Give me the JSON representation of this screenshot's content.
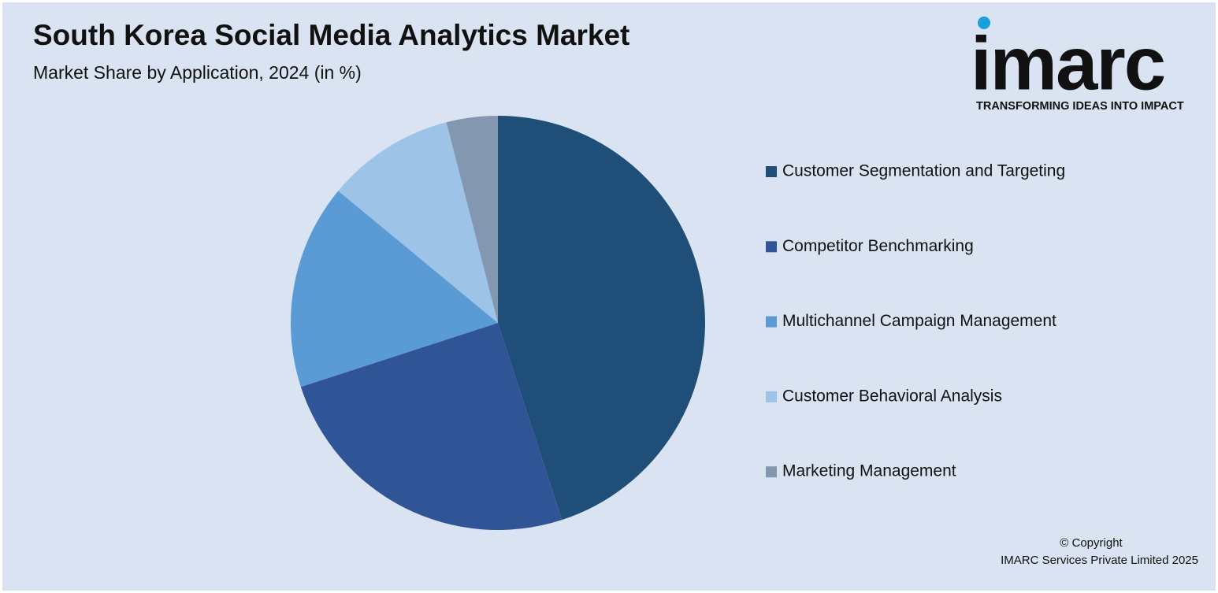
{
  "chart_data": {
    "type": "pie",
    "title": "South Korea Social Media Analytics Market",
    "subtitle": "Market Share by Application, 2024 (in %)",
    "categories": [
      "Customer Segmentation and Targeting",
      "Competitor Benchmarking",
      "Multichannel Campaign Management",
      "Customer Behavioral Analysis",
      "Marketing Management"
    ],
    "values": [
      45,
      25,
      16,
      10,
      4
    ],
    "colors": [
      "#1f4e79",
      "#2f5597",
      "#5b9bd5",
      "#9dc3e6",
      "#8497b0"
    ],
    "legend": "right"
  },
  "logo": {
    "name": "imarc",
    "tagline": "TRANSFORMING IDEAS INTO IMPACT"
  },
  "copyright": [
    "© Copyright",
    "IMARC Services Private Limited 2025"
  ]
}
